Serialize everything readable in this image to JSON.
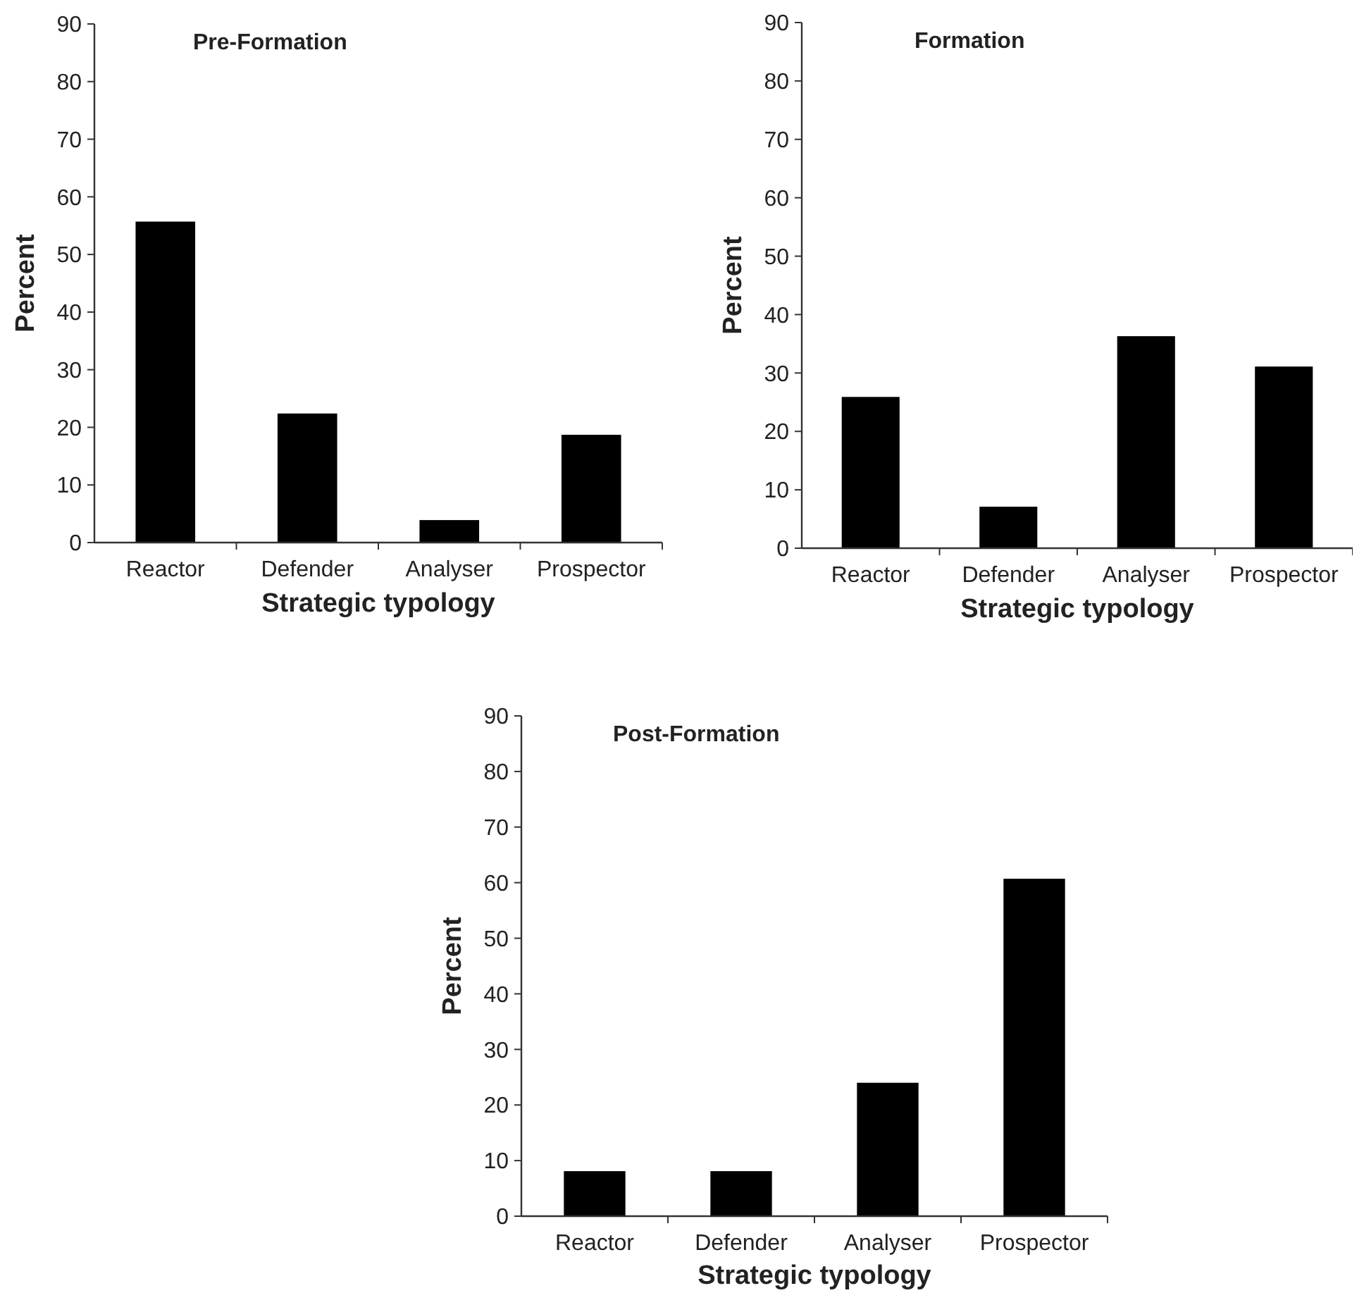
{
  "chart_data": [
    {
      "type": "bar",
      "title": "Pre-Formation",
      "xlabel": "Strategic typology",
      "ylabel": "Percent",
      "categories": [
        "Reactor",
        "Defender",
        "Analyser",
        "Prospector"
      ],
      "values": [
        55.7,
        22.4,
        3.9,
        18.7
      ],
      "color": "#000000",
      "ylim": [
        0,
        90
      ],
      "yticks": [
        0,
        10,
        20,
        30,
        40,
        50,
        60,
        70,
        80,
        90
      ],
      "grid": false
    },
    {
      "type": "bar",
      "title": "Formation",
      "xlabel": "Strategic typology",
      "ylabel": "Percent",
      "categories": [
        "Reactor",
        "Defender",
        "Analyser",
        "Prospector"
      ],
      "values": [
        25.9,
        7.1,
        36.3,
        31.1
      ],
      "color": "#000000",
      "ylim": [
        0,
        90
      ],
      "yticks": [
        0,
        10,
        20,
        30,
        40,
        50,
        60,
        70,
        80,
        90
      ],
      "grid": false
    },
    {
      "type": "bar",
      "title": "Post-Formation",
      "xlabel": "Strategic typology",
      "ylabel": "Percent",
      "categories": [
        "Reactor",
        "Defender",
        "Analyser",
        "Prospector"
      ],
      "values": [
        8.1,
        8.1,
        24.0,
        60.7
      ],
      "color": "#000000",
      "ylim": [
        0,
        90
      ],
      "yticks": [
        0,
        10,
        20,
        30,
        40,
        50,
        60,
        70,
        80,
        90
      ],
      "grid": false
    }
  ]
}
